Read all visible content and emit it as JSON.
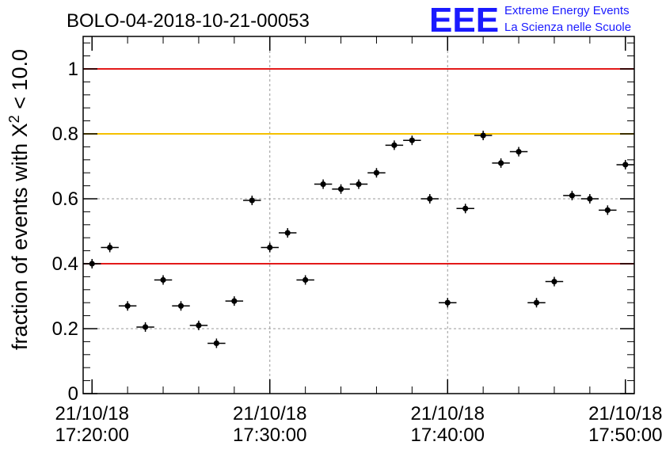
{
  "chart_data": {
    "type": "scatter",
    "title": "BOLO-04-2018-10-21-00053",
    "ylabel_main": "fraction of events with X",
    "ylabel_sup": "2",
    "ylabel_tail": " < 10.0",
    "xlim": [
      "2018-10-21 17:19:30",
      "2018-10-21 17:50:30"
    ],
    "ylim": [
      0,
      1.1
    ],
    "grid": true,
    "y_ticks": [
      "0",
      "0.2",
      "0.4",
      "0.6",
      "0.8",
      "1"
    ],
    "y_tick_values": [
      0,
      0.2,
      0.4,
      0.6,
      0.8,
      1
    ],
    "x_ticks": [
      {
        "date": "21/10/18",
        "time": "17:20:00"
      },
      {
        "date": "21/10/18",
        "time": "17:30:00"
      },
      {
        "date": "21/10/18",
        "time": "17:40:00"
      },
      {
        "date": "21/10/18",
        "time": "17:50:00"
      }
    ],
    "x_tick_times": [
      "17:20:00",
      "17:30:00",
      "17:40:00",
      "17:50:00"
    ],
    "reference_lines": [
      {
        "y": 1.0,
        "color": "#e31a1a"
      },
      {
        "y": 0.8,
        "color": "#f5c000"
      },
      {
        "y": 0.4,
        "color": "#e31a1a"
      }
    ],
    "points": [
      {
        "x": "17:20:00",
        "y": 0.4
      },
      {
        "x": "17:21:00",
        "y": 0.45
      },
      {
        "x": "17:22:00",
        "y": 0.27
      },
      {
        "x": "17:23:00",
        "y": 0.205
      },
      {
        "x": "17:24:00",
        "y": 0.35
      },
      {
        "x": "17:25:00",
        "y": 0.27
      },
      {
        "x": "17:26:00",
        "y": 0.21
      },
      {
        "x": "17:27:00",
        "y": 0.155
      },
      {
        "x": "17:28:00",
        "y": 0.285
      },
      {
        "x": "17:29:00",
        "y": 0.595
      },
      {
        "x": "17:30:00",
        "y": 0.45
      },
      {
        "x": "17:31:00",
        "y": 0.495
      },
      {
        "x": "17:32:00",
        "y": 0.35
      },
      {
        "x": "17:33:00",
        "y": 0.645
      },
      {
        "x": "17:34:00",
        "y": 0.63
      },
      {
        "x": "17:35:00",
        "y": 0.645
      },
      {
        "x": "17:36:00",
        "y": 0.68
      },
      {
        "x": "17:37:00",
        "y": 0.765
      },
      {
        "x": "17:38:00",
        "y": 0.78
      },
      {
        "x": "17:39:00",
        "y": 0.6
      },
      {
        "x": "17:40:00",
        "y": 0.28
      },
      {
        "x": "17:41:00",
        "y": 0.57
      },
      {
        "x": "17:42:00",
        "y": 0.795
      },
      {
        "x": "17:43:00",
        "y": 0.71
      },
      {
        "x": "17:44:00",
        "y": 0.745
      },
      {
        "x": "17:45:00",
        "y": 0.28
      },
      {
        "x": "17:46:00",
        "y": 0.345
      },
      {
        "x": "17:47:00",
        "y": 0.61
      },
      {
        "x": "17:48:00",
        "y": 0.6
      },
      {
        "x": "17:49:00",
        "y": 0.565
      },
      {
        "x": "17:50:00",
        "y": 0.705
      }
    ]
  },
  "logo": {
    "mark": "EEE",
    "line1": "Extreme Energy Events",
    "line2": "La Scienza nelle Scuole"
  }
}
